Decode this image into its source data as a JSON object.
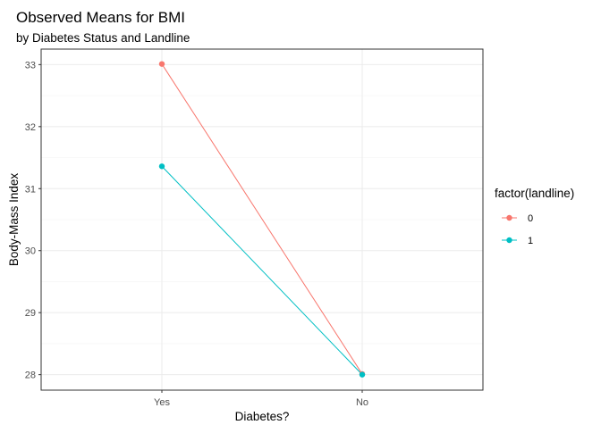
{
  "chart_data": {
    "type": "line",
    "title": "Observed Means for BMI",
    "subtitle": "by Diabetes Status and Landline",
    "xlabel": "Diabetes?",
    "ylabel": "Body-Mass Index",
    "categories": [
      "Yes",
      "No"
    ],
    "ylim": [
      27.75,
      33.25
    ],
    "yticks": [
      28,
      29,
      30,
      31,
      32,
      33
    ],
    "grid": true,
    "legend": {
      "title": "factor(landline)",
      "placement": "right"
    },
    "series": [
      {
        "name": "0",
        "values": [
          33.01,
          28.01
        ],
        "color": "#F8766D"
      },
      {
        "name": "1",
        "values": [
          31.36,
          28.0
        ],
        "color": "#00BFC4"
      }
    ]
  }
}
